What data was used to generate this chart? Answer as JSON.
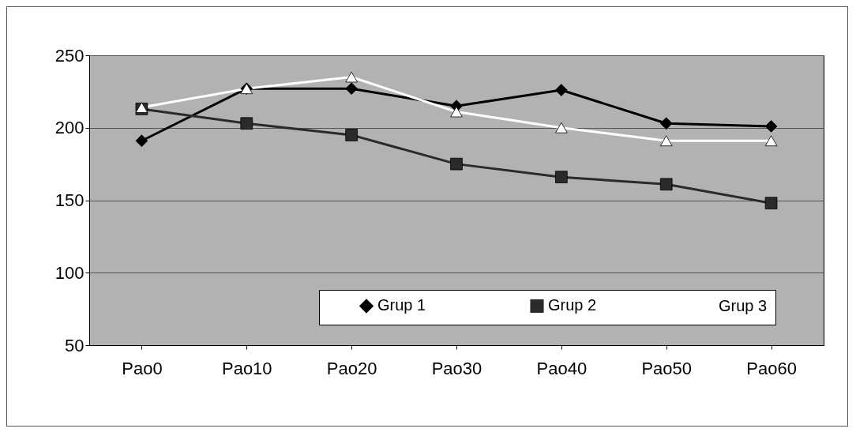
{
  "chart_data": {
    "type": "line",
    "categories": [
      "Pao0",
      "Pao10",
      "Pao20",
      "Pao30",
      "Pao40",
      "Pao50",
      "Pao60"
    ],
    "series": [
      {
        "name": "Grup 1",
        "color": "#000000",
        "marker": "diamond",
        "values": [
          191,
          227,
          227,
          215,
          226,
          203,
          201
        ]
      },
      {
        "name": "Grup 2",
        "color": "#2a2a2a",
        "marker": "square",
        "values": [
          213,
          203,
          195,
          175,
          166,
          161,
          148
        ]
      },
      {
        "name": "Grup 3",
        "color": "#ffffff",
        "marker": "triangle",
        "values": [
          214,
          227,
          235,
          211,
          200,
          191,
          191
        ]
      }
    ],
    "ylim": [
      50,
      250
    ],
    "yticks": [
      50,
      100,
      150,
      200,
      250
    ],
    "grid": "y",
    "legend": "bottom right",
    "line_style": "solid"
  }
}
